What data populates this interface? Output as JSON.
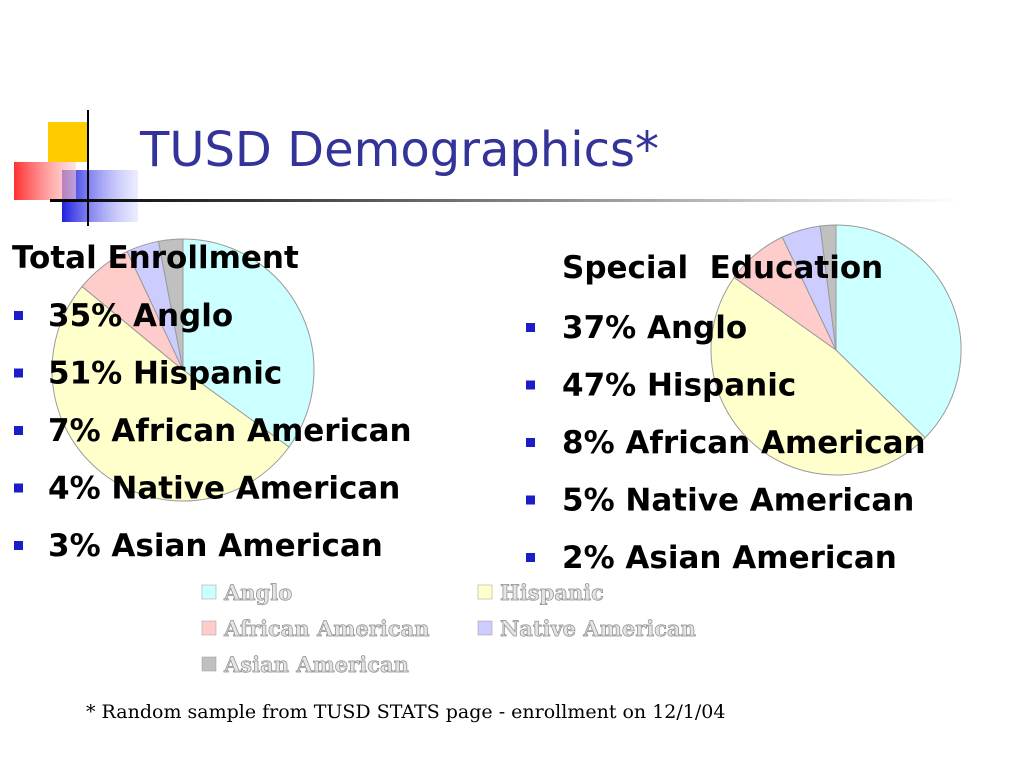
{
  "title": "TUSD Demographics*",
  "footnote": "* Random sample from TUSD STATS page - enrollment on 12/1/04",
  "legend": {
    "items": [
      {
        "name": "Anglo",
        "color": "#ccffff"
      },
      {
        "name": "Hispanic",
        "color": "#ffffcc"
      },
      {
        "name": "African American",
        "color": "#ffcccc"
      },
      {
        "name": "Native American",
        "color": "#ccccff"
      },
      {
        "name": "Asian American",
        "color": "#c0c0c0"
      }
    ]
  },
  "chart_data": [
    {
      "type": "pie",
      "title": "Total Enrollment",
      "values": [
        35,
        51,
        7,
        4,
        3
      ],
      "value_labels": [
        "35% Anglo",
        "51% Hispanic",
        "7% African American",
        "4% Native American",
        "3% Asian American"
      ]
    },
    {
      "type": "pie",
      "title": "Special  Education",
      "values": [
        37,
        47,
        8,
        5,
        2
      ],
      "value_labels": [
        "37% Anglo",
        "47% Hispanic",
        "8% African American",
        "5% Native American",
        "2% Asian American"
      ]
    }
  ]
}
